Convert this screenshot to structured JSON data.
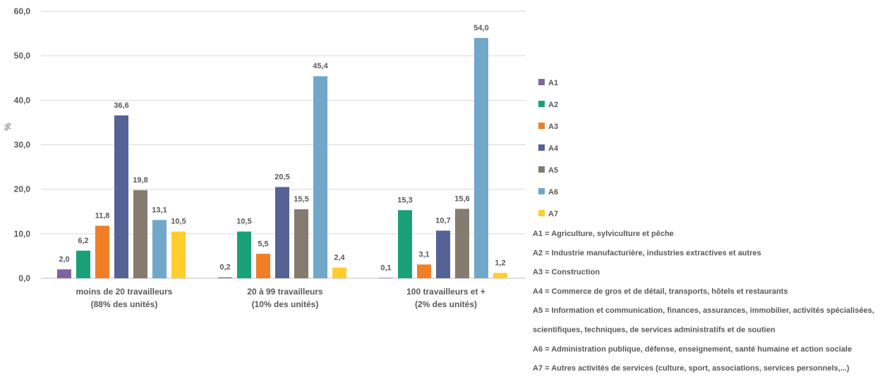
{
  "chart_data": {
    "type": "bar",
    "ylabel": "%",
    "ylim": [
      0,
      60
    ],
    "yticks": [
      "0,0",
      "10,0",
      "20,0",
      "30,0",
      "40,0",
      "50,0",
      "60,0"
    ],
    "grid": true,
    "legend_position": "right",
    "categories": [
      [
        "moins de 20 travailleurs",
        "(88% des unités)"
      ],
      [
        "20 à 99 travailleurs",
        "(10% des unités)"
      ],
      [
        "100 travailleurs et +",
        "(2% des unités)"
      ]
    ],
    "series": [
      {
        "name": "A1",
        "color": "#8064A2",
        "values": [
          2.0,
          0.2,
          0.1
        ],
        "labels": [
          "2,0",
          "0,2",
          "0,1"
        ]
      },
      {
        "name": "A2",
        "color": "#1AA079",
        "values": [
          6.2,
          10.5,
          15.3
        ],
        "labels": [
          "6,2",
          "10,5",
          "15,3"
        ]
      },
      {
        "name": "A3",
        "color": "#F07E26",
        "values": [
          11.8,
          5.5,
          3.1
        ],
        "labels": [
          "11,8",
          "5,5",
          "3,1"
        ]
      },
      {
        "name": "A4",
        "color": "#546296",
        "values": [
          36.6,
          20.5,
          10.7
        ],
        "labels": [
          "36,6",
          "20,5",
          "10,7"
        ]
      },
      {
        "name": "A5",
        "color": "#857B6E",
        "values": [
          19.8,
          15.5,
          15.6
        ],
        "labels": [
          "19,8",
          "15,5",
          "15,6"
        ]
      },
      {
        "name": "A6",
        "color": "#71A7C9",
        "values": [
          13.1,
          45.4,
          54.0
        ],
        "labels": [
          "13,1",
          "45,4",
          "54,0"
        ]
      },
      {
        "name": "A7",
        "color": "#FFCD2E",
        "values": [
          10.5,
          2.4,
          1.2
        ],
        "labels": [
          "10,5",
          "2,4",
          "1,2"
        ]
      }
    ],
    "notes": [
      "A1 = Agriculture, sylviculture et pêche",
      "A2 = Industrie manufacturière, industries extractives et autres",
      "A3 = Construction",
      "A4 = Commerce de gros et de détail, transports, hôtels et restaurants",
      "A5 = Information et communication, finances, assurances, immobilier, activités spécialisées,",
      "scientifiques, techniques, de services administratifs et de soutien",
      "A6 = Administration publique, défense, enseignement, santé humaine et action sociale",
      "A7 = Autres activités de services (culture, sport, associations, services personnels,...)"
    ]
  }
}
